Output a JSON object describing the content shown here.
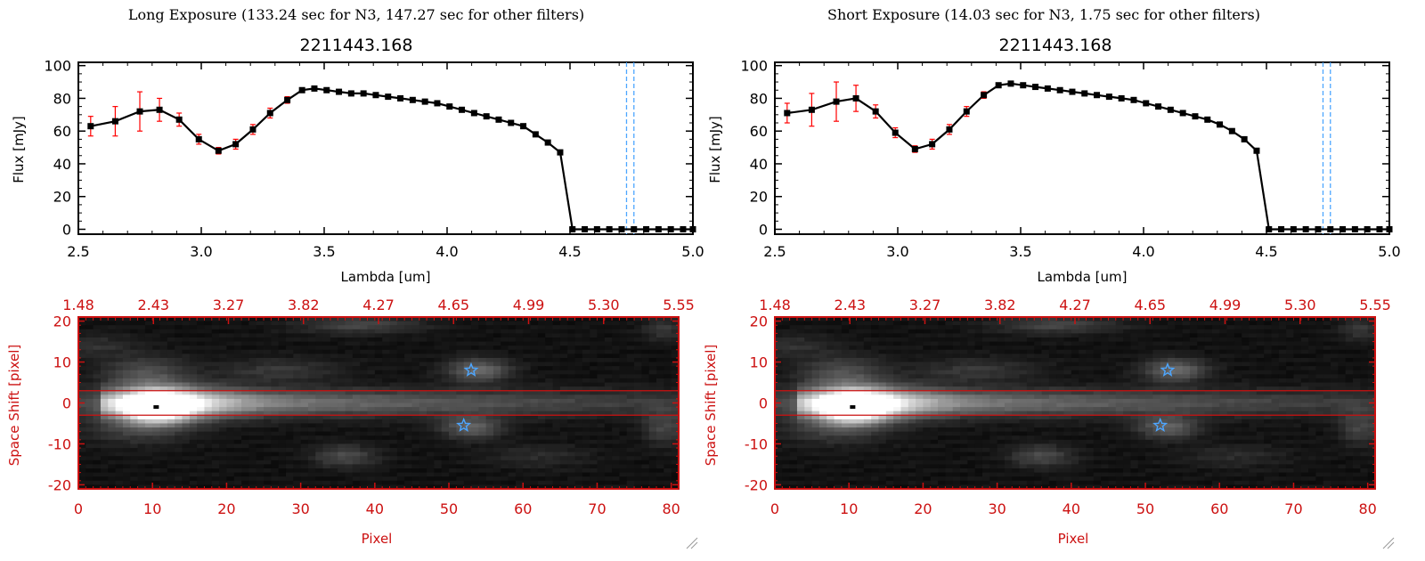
{
  "panels": [
    {
      "id": "long",
      "heading": "Long Exposure (133.24 sec for N3, 147.27 sec for other filters)",
      "object_id": "2211443.168"
    },
    {
      "id": "short",
      "heading": "Short Exposure (14.03 sec for N3, 1.75 sec for other filters)",
      "object_id": "2211443.168"
    }
  ],
  "colors": {
    "line": "#000000",
    "error_bar": "#ff0000",
    "cutoff_line": "#4da6ff",
    "image_axis": "#cc1111",
    "star_marker": "#4da6ff"
  },
  "chart_data": [
    {
      "type": "line",
      "panel": "long",
      "title": "2211443.168",
      "xlabel": "Lambda [um]",
      "ylabel": "Flux [mJy]",
      "xlim": [
        2.5,
        5.0
      ],
      "ylim": [
        -3,
        102
      ],
      "xticks": [
        "2.5",
        "3.0",
        "3.5",
        "4.0",
        "4.5",
        "5.0"
      ],
      "yticks": [
        "0",
        "20",
        "40",
        "60",
        "80",
        "100"
      ],
      "x": [
        2.55,
        2.65,
        2.75,
        2.83,
        2.91,
        2.99,
        3.07,
        3.14,
        3.21,
        3.28,
        3.35,
        3.41,
        3.46,
        3.51,
        3.56,
        3.61,
        3.66,
        3.71,
        3.76,
        3.81,
        3.86,
        3.91,
        3.96,
        4.01,
        4.06,
        4.11,
        4.16,
        4.21,
        4.26,
        4.31,
        4.36,
        4.41,
        4.46,
        4.51,
        4.56,
        4.61,
        4.66,
        4.71,
        4.76,
        4.81,
        4.86,
        4.91,
        4.96,
        5.0
      ],
      "y": [
        63,
        66,
        72,
        73,
        67,
        55,
        48,
        52,
        61,
        71,
        79,
        85,
        86,
        85,
        84,
        83,
        83,
        82,
        81,
        80,
        79,
        78,
        77,
        75,
        73,
        71,
        69,
        67,
        65,
        63,
        58,
        53,
        47,
        0,
        0,
        0,
        0,
        0,
        0,
        0,
        0,
        0,
        0,
        0
      ],
      "yerr": [
        6,
        9,
        12,
        7,
        4,
        3,
        2,
        3,
        3,
        3,
        2,
        1,
        1,
        1,
        1,
        1,
        1,
        1,
        1,
        1,
        1,
        1,
        1,
        1,
        1,
        1,
        1,
        1,
        1,
        1,
        1,
        1,
        1,
        0,
        0,
        0,
        0,
        0,
        0,
        0,
        0,
        0,
        0,
        0
      ],
      "cutoff_lines": [
        4.73,
        4.76
      ]
    },
    {
      "type": "line",
      "panel": "short",
      "title": "2211443.168",
      "xlabel": "Lambda [um]",
      "ylabel": "Flux [mJy]",
      "xlim": [
        2.5,
        5.0
      ],
      "ylim": [
        -3,
        102
      ],
      "xticks": [
        "2.5",
        "3.0",
        "3.5",
        "4.0",
        "4.5",
        "5.0"
      ],
      "yticks": [
        "0",
        "20",
        "40",
        "60",
        "80",
        "100"
      ],
      "x": [
        2.55,
        2.65,
        2.75,
        2.83,
        2.91,
        2.99,
        3.07,
        3.14,
        3.21,
        3.28,
        3.35,
        3.41,
        3.46,
        3.51,
        3.56,
        3.61,
        3.66,
        3.71,
        3.76,
        3.81,
        3.86,
        3.91,
        3.96,
        4.01,
        4.06,
        4.11,
        4.16,
        4.21,
        4.26,
        4.31,
        4.36,
        4.41,
        4.46,
        4.51,
        4.56,
        4.61,
        4.66,
        4.71,
        4.76,
        4.81,
        4.86,
        4.91,
        4.96,
        5.0
      ],
      "y": [
        71,
        73,
        78,
        80,
        72,
        59,
        49,
        52,
        61,
        72,
        82,
        88,
        89,
        88,
        87,
        86,
        85,
        84,
        83,
        82,
        81,
        80,
        79,
        77,
        75,
        73,
        71,
        69,
        67,
        64,
        60,
        55,
        48,
        0,
        0,
        0,
        0,
        0,
        0,
        0,
        0,
        0,
        0,
        0
      ],
      "yerr": [
        6,
        10,
        12,
        8,
        4,
        3,
        2,
        3,
        3,
        3,
        2,
        1,
        1,
        1,
        1,
        1,
        1,
        1,
        1,
        1,
        1,
        1,
        1,
        1,
        1,
        1,
        1,
        1,
        1,
        1,
        1,
        1,
        1,
        0,
        0,
        0,
        0,
        0,
        0,
        0,
        0,
        0,
        0,
        0
      ],
      "cutoff_lines": [
        4.73,
        4.76
      ]
    },
    {
      "type": "heatmap",
      "panel": "long",
      "xlabel": "Pixel",
      "ylabel": "Space Shift [pixel]",
      "xlim": [
        0,
        81
      ],
      "ylim": [
        -21,
        21
      ],
      "xticks": [
        "0",
        "10",
        "20",
        "30",
        "40",
        "50",
        "60",
        "70",
        "80"
      ],
      "yticks": [
        "-20",
        "-10",
        "0",
        "10",
        "20"
      ],
      "top_axis_ticks": [
        "1.48",
        "2.43",
        "3.27",
        "3.82",
        "4.27",
        "4.65",
        "4.99",
        "5.30",
        "5.55"
      ],
      "aperture_lines": [
        3,
        -3
      ],
      "source_peak": [
        10.5,
        -1
      ],
      "star_markers": [
        [
          53,
          8
        ],
        [
          52,
          -5.5
        ]
      ],
      "blobs": [
        {
          "x": 10.5,
          "y": -1,
          "sx": 3.2,
          "sy": 2.6,
          "amp": 1.0
        },
        {
          "x": 14,
          "y": 0,
          "sx": 6,
          "sy": 3,
          "amp": 0.35
        },
        {
          "x": 9,
          "y": 7,
          "sx": 4,
          "sy": 3,
          "amp": 0.25
        },
        {
          "x": 8,
          "y": -6,
          "sx": 5,
          "sy": 3,
          "amp": 0.18
        },
        {
          "x": 54,
          "y": 8,
          "sx": 3,
          "sy": 2,
          "amp": 0.35
        },
        {
          "x": 53,
          "y": -6,
          "sx": 3,
          "sy": 2,
          "amp": 0.3
        },
        {
          "x": 36,
          "y": -13,
          "sx": 3,
          "sy": 2,
          "amp": 0.22
        },
        {
          "x": 38,
          "y": 19,
          "sx": 6,
          "sy": 1.5,
          "amp": 0.2
        },
        {
          "x": 27,
          "y": 8,
          "sx": 6,
          "sy": 2,
          "amp": 0.15
        },
        {
          "x": 62,
          "y": -13,
          "sx": 5,
          "sy": 2,
          "amp": 0.1
        },
        {
          "x": 79,
          "y": -6,
          "sx": 2,
          "sy": 3,
          "amp": 0.2
        },
        {
          "x": 79,
          "y": 18,
          "sx": 2,
          "sy": 2,
          "amp": 0.15
        },
        {
          "x": 2,
          "y": 14,
          "sx": 4,
          "sy": 2,
          "amp": 0.12
        }
      ],
      "band": {
        "center_y": 0,
        "width_y": 2.3,
        "decay_x": 55,
        "amp": 0.55
      }
    },
    {
      "type": "heatmap",
      "panel": "short",
      "xlabel": "Pixel",
      "ylabel": "Space Shift [pixel]",
      "xlim": [
        0,
        81
      ],
      "ylim": [
        -21,
        21
      ],
      "xticks": [
        "0",
        "10",
        "20",
        "30",
        "40",
        "50",
        "60",
        "70",
        "80"
      ],
      "yticks": [
        "-20",
        "-10",
        "0",
        "10",
        "20"
      ],
      "top_axis_ticks": [
        "1.48",
        "2.43",
        "3.27",
        "3.82",
        "4.27",
        "4.65",
        "4.99",
        "5.30",
        "5.55"
      ],
      "aperture_lines": [
        3,
        -3
      ],
      "source_peak": [
        10.5,
        -1
      ],
      "star_markers": [
        [
          53,
          8
        ],
        [
          52,
          -5.5
        ]
      ],
      "blobs": [
        {
          "x": 10.5,
          "y": -1,
          "sx": 3.2,
          "sy": 2.6,
          "amp": 1.0
        },
        {
          "x": 14,
          "y": 0,
          "sx": 6,
          "sy": 3,
          "amp": 0.35
        },
        {
          "x": 9,
          "y": 7,
          "sx": 4,
          "sy": 3,
          "amp": 0.25
        },
        {
          "x": 8,
          "y": -6,
          "sx": 5,
          "sy": 3,
          "amp": 0.18
        },
        {
          "x": 54,
          "y": 8,
          "sx": 3,
          "sy": 2,
          "amp": 0.35
        },
        {
          "x": 53,
          "y": -6,
          "sx": 3,
          "sy": 2,
          "amp": 0.3
        },
        {
          "x": 36,
          "y": -13,
          "sx": 3,
          "sy": 2,
          "amp": 0.22
        },
        {
          "x": 38,
          "y": 19,
          "sx": 6,
          "sy": 1.5,
          "amp": 0.2
        },
        {
          "x": 27,
          "y": 8,
          "sx": 6,
          "sy": 2,
          "amp": 0.15
        },
        {
          "x": 62,
          "y": -13,
          "sx": 5,
          "sy": 2,
          "amp": 0.1
        },
        {
          "x": 79,
          "y": -6,
          "sx": 2,
          "sy": 3,
          "amp": 0.2
        },
        {
          "x": 79,
          "y": 18,
          "sx": 2,
          "sy": 2,
          "amp": 0.15
        },
        {
          "x": 2,
          "y": 14,
          "sx": 4,
          "sy": 2,
          "amp": 0.12
        }
      ],
      "band": {
        "center_y": 0,
        "width_y": 2.3,
        "decay_x": 55,
        "amp": 0.55
      }
    }
  ]
}
